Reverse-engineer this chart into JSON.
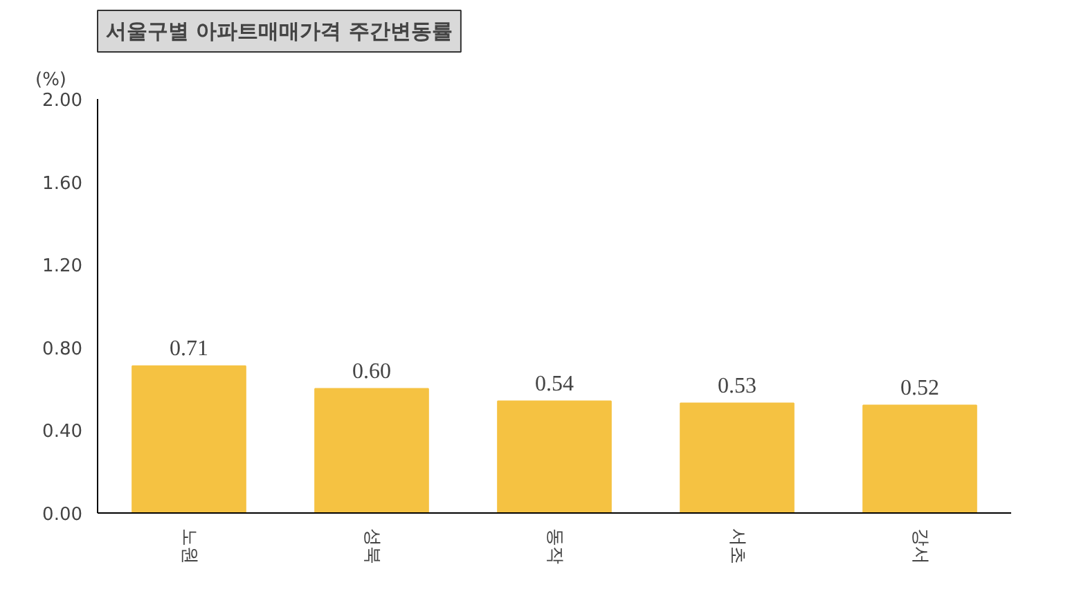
{
  "chart_data": {
    "type": "bar",
    "title": "서울구별 아파트매매가격 주간변동률",
    "ylabel": "(%)",
    "categories": [
      "노원",
      "성북",
      "동작",
      "서초",
      "강서"
    ],
    "values": [
      0.71,
      0.6,
      0.54,
      0.53,
      0.52
    ],
    "color": "#f5c242",
    "ylim": [
      0,
      2.0
    ],
    "yticks": [
      {
        "value": 0,
        "label": "0.00"
      },
      {
        "value": 0.4,
        "label": "0.40"
      },
      {
        "value": 0.8,
        "label": "0.80"
      },
      {
        "value": 1.2,
        "label": "1.20"
      },
      {
        "value": 1.6,
        "label": "1.60"
      },
      {
        "value": 2.0,
        "label": "2.00"
      }
    ],
    "value_labels": [
      "0.71",
      "0.60",
      "0.54",
      "0.53",
      "0.52"
    ],
    "grid": false
  }
}
